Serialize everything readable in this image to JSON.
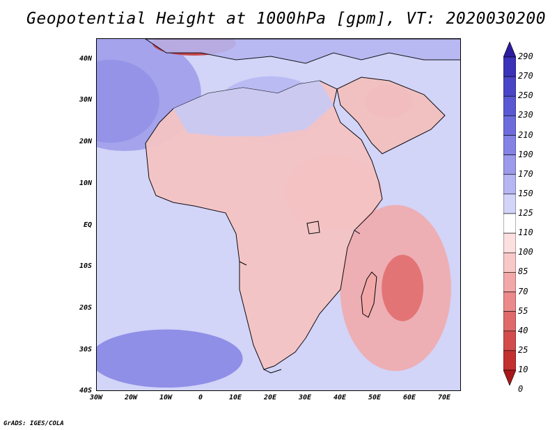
{
  "title": "Geopotential Height at 1000hPa [gpm], VT: 2020030200",
  "footer": "GrADS: IGES/COLA",
  "map": {
    "projection": "latlon",
    "lon_range": [
      -30,
      75
    ],
    "lat_range": [
      -40,
      45
    ],
    "lat_labels": [
      "40N",
      "30N",
      "20N",
      "10N",
      "EQ",
      "10S",
      "20S",
      "30S",
      "40S"
    ],
    "lon_labels": [
      "30W",
      "20W",
      "10W",
      "0",
      "10E",
      "20E",
      "30E",
      "40E",
      "50E",
      "60E",
      "70E"
    ]
  },
  "colorbar": {
    "levels": [
      "290",
      "270",
      "250",
      "230",
      "210",
      "190",
      "170",
      "150",
      "125",
      "110",
      "100",
      "85",
      "70",
      "55",
      "40",
      "25",
      "10",
      "0"
    ],
    "colors": [
      "#2c1c9e",
      "#3a32b8",
      "#4a44c6",
      "#5a58d2",
      "#6e6cdc",
      "#8482e4",
      "#9c9aea",
      "#b6b6f2",
      "#d2d4f8",
      "#ffffff",
      "#fce0e0",
      "#f8c8c8",
      "#f2a8a8",
      "#ea8a8a",
      "#e06a6a",
      "#d24c4c",
      "#c23030",
      "#a81818"
    ]
  },
  "anomalies": [
    {
      "id": "north-atlantic-high",
      "lon": -26,
      "lat": 30,
      "rx_deg": 14,
      "ry_deg": 10,
      "color": "#5a58d2"
    },
    {
      "id": "north-atlantic-broad",
      "lon": -22,
      "lat": 32,
      "rx_deg": 22,
      "ry_deg": 14,
      "color": "#9c9aea"
    },
    {
      "id": "sahara-high",
      "lon": 20,
      "lat": 28,
      "rx_deg": 16,
      "ry_deg": 8,
      "color": "#b6b6f2"
    },
    {
      "id": "east-africa-low",
      "lon": 38,
      "lat": 8,
      "rx_deg": 14,
      "ry_deg": 9,
      "color": "#f2a8a8"
    },
    {
      "id": "madagascar-low-outer",
      "lon": 56,
      "lat": -15,
      "rx_deg": 16,
      "ry_deg": 20,
      "color": "#f2a8a8"
    },
    {
      "id": "madagascar-low-core",
      "lon": 58,
      "lat": -15,
      "rx_deg": 6,
      "ry_deg": 8,
      "color": "#e06a6a"
    },
    {
      "id": "south-atlantic-high",
      "lon": -10,
      "lat": -32,
      "rx_deg": 22,
      "ry_deg": 7,
      "color": "#8482e4"
    },
    {
      "id": "mediterranean-low",
      "lon": -2,
      "lat": 44,
      "rx_deg": 12,
      "ry_deg": 3,
      "color": "#c23030"
    },
    {
      "id": "arabia-low",
      "lon": 54,
      "lat": 30,
      "rx_deg": 7,
      "ry_deg": 4,
      "color": "#ea8a8a"
    }
  ]
}
